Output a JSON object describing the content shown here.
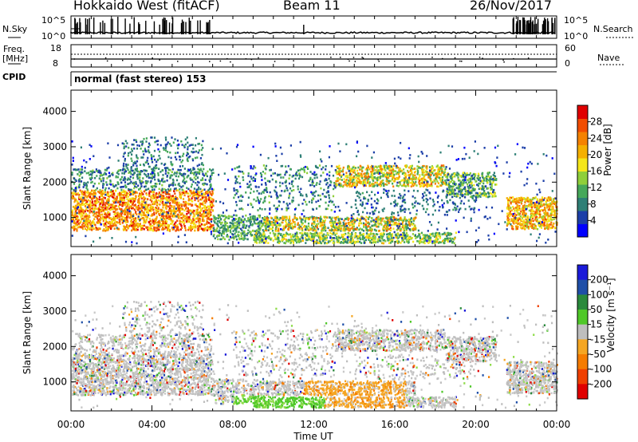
{
  "header": {
    "station": "Hokkaido West (fitACF)",
    "beam": "Beam 11",
    "date": "26/Nov/2017"
  },
  "noise_panel": {
    "left_label": "N.Sky",
    "left_ticks": [
      "10^5",
      "10^0"
    ],
    "right_ticks": [
      "10^5",
      "10^0"
    ],
    "right_label": "N.Search"
  },
  "freq_panel": {
    "left_label_1": "Freq.",
    "left_label_2": "[MHz]",
    "left_ticks": [
      "18",
      "8"
    ],
    "right_ticks": [
      "60",
      "0"
    ],
    "right_label": "Nave"
  },
  "cpid": {
    "label": "CPID",
    "mode": "normal (fast stereo) 153"
  },
  "colors": {
    "power_scale": [
      "#0000ff",
      "#1c3fa8",
      "#2e7f76",
      "#46a85a",
      "#8fcf3a",
      "#f5e61a",
      "#f5b000",
      "#f58200",
      "#f24d00",
      "#e00000"
    ],
    "velocity_scale": [
      "#1a1ad9",
      "#1f4fa8",
      "#2a8a3c",
      "#4fc829",
      "#8fdc4a",
      "#bebebe",
      "#c8c8c8",
      "#f5a623",
      "#f57c00",
      "#f04000",
      "#e00000"
    ]
  },
  "chart_data": [
    {
      "type": "heatmap",
      "name": "power",
      "ylabel": "Slant Range [km]",
      "ylim": [
        180,
        4600
      ],
      "yticks": [
        1000,
        2000,
        3000,
        4000
      ],
      "xlim": [
        0,
        24
      ],
      "xticks": [
        "00:00",
        "04:00",
        "08:00",
        "12:00",
        "16:00",
        "20:00",
        "00:00"
      ],
      "colorbar": {
        "label": "Power [dB]",
        "range": [
          0,
          32
        ],
        "ticks": [
          "4",
          "8",
          "12",
          "16",
          "20",
          "24",
          "28"
        ]
      }
    },
    {
      "type": "heatmap",
      "name": "velocity",
      "ylabel": "Slant Range [km]",
      "ylim": [
        180,
        4600
      ],
      "yticks": [
        1000,
        2000,
        3000,
        4000
      ],
      "xlim": [
        0,
        24
      ],
      "xticks": [
        "00:00",
        "04:00",
        "08:00",
        "12:00",
        "16:00",
        "20:00",
        "00:00"
      ],
      "xlabel": "Time UT",
      "colorbar": {
        "label": "Velocity [m s⁻¹]",
        "ticks": [
          "200",
          "100",
          "50",
          "15",
          "-15",
          "-50",
          "-100",
          "-200"
        ]
      }
    }
  ]
}
